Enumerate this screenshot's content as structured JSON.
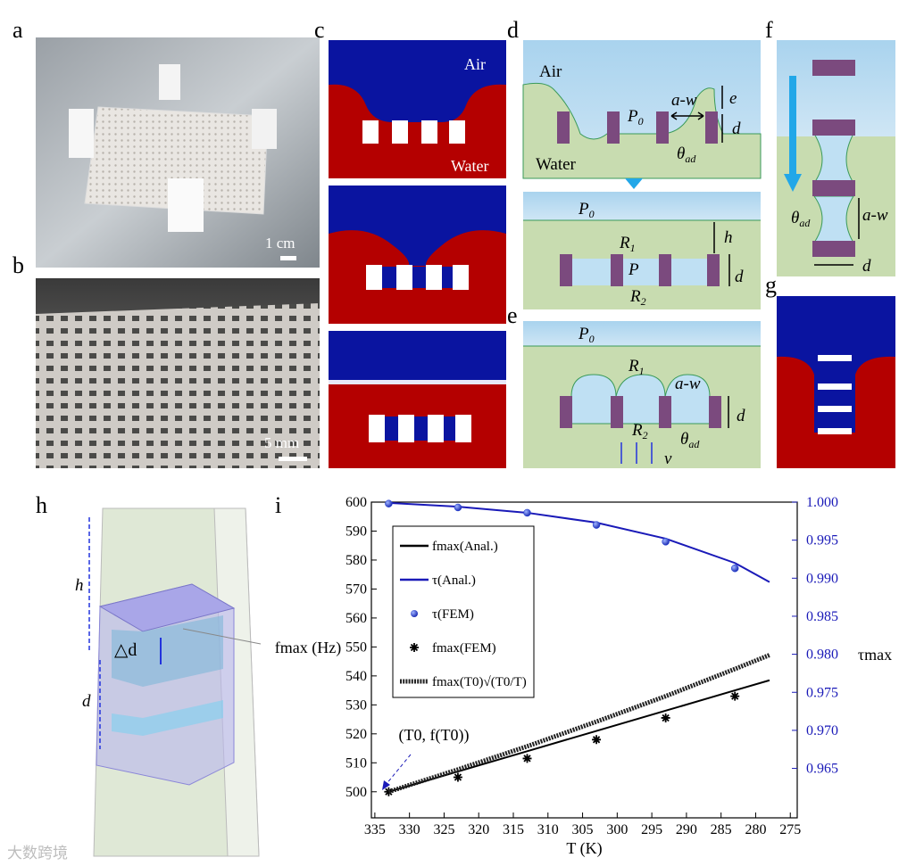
{
  "panels": {
    "a": {
      "label": "a",
      "scale_bar": "1 cm"
    },
    "b": {
      "label": "b",
      "scale_bar": "5 mm"
    },
    "c": {
      "label": "c",
      "top_medium": "Air",
      "bottom_medium": "Water"
    },
    "d": {
      "label": "d",
      "air": "Air",
      "water": "Water",
      "p0": {
        "base": "P",
        "sub": "0"
      },
      "gap": "a-w",
      "e": "e",
      "d": "d",
      "theta": {
        "base": "θ",
        "sub": "ad"
      },
      "p0_lower": {
        "base": "P",
        "sub": "0"
      },
      "h": "h",
      "r1": {
        "base": "R",
        "sub": "1"
      },
      "p": "P",
      "d_lower": "d",
      "r2": {
        "base": "R",
        "sub": "2"
      }
    },
    "e": {
      "label": "e",
      "p0": {
        "base": "P",
        "sub": "0"
      },
      "r1": {
        "base": "R",
        "sub": "1"
      },
      "gap": "a-w",
      "d": "d",
      "r2": {
        "base": "R",
        "sub": "2"
      },
      "theta": {
        "base": "θ",
        "sub": "ad"
      },
      "v": "v"
    },
    "f": {
      "label": "f",
      "theta": {
        "base": "θ",
        "sub": "ad"
      },
      "gap": "a-w",
      "d": "d"
    },
    "g": {
      "label": "g"
    },
    "h": {
      "label": "h",
      "h": "h",
      "delta_d": "△d",
      "d": "d"
    },
    "i": {
      "label": "i"
    }
  },
  "watermark": "大数跨境",
  "chart_data": {
    "type": "line",
    "xlabel": "T (K)",
    "ylabel": "fmax (Hz)",
    "y2label": "τmax",
    "annotation": "(T0, f(T0))",
    "xlim": [
      335.5,
      274
    ],
    "xticks": [
      335,
      330,
      325,
      320,
      315,
      310,
      305,
      300,
      295,
      290,
      285,
      280,
      275
    ],
    "ylim": [
      491,
      600
    ],
    "yticks": [
      500,
      510,
      520,
      530,
      540,
      550,
      560,
      570,
      580,
      590,
      600
    ],
    "y2lim": [
      0.9585,
      1.0
    ],
    "y2ticks": [
      {
        "value": 1.0,
        "label": "1.000"
      },
      0.995,
      {
        "value": 0.99,
        "label": "0.990"
      },
      0.985,
      {
        "value": 0.98,
        "label": "0.980"
      },
      0.975,
      {
        "value": 0.97,
        "label": "0.970"
      },
      0.965
    ],
    "grid": false,
    "series": [
      {
        "name": "fmax(Anal.)",
        "color": "#000000",
        "style": "line",
        "x": [
          333,
          323,
          313,
          303,
          293,
          283,
          278
        ],
        "values": [
          500,
          507,
          514,
          521,
          528,
          535,
          538.5
        ]
      },
      {
        "name": "τ(Anal.)",
        "color": "#1a1ab8",
        "style": "line",
        "axis": "y2",
        "x": [
          333,
          323,
          313,
          303,
          293,
          283,
          278
        ],
        "values": [
          0.9999,
          0.9994,
          0.9986,
          0.9973,
          0.9952,
          0.992,
          0.9895
        ]
      },
      {
        "name": "τ(FEM)",
        "color": "#1f3fd8",
        "style": "dots",
        "axis": "y2",
        "x": [
          333,
          323,
          313,
          303,
          293,
          283
        ],
        "values": [
          0.9998,
          0.9993,
          0.9986,
          0.997,
          0.9948,
          0.9913
        ]
      },
      {
        "name": "fmax(FEM)",
        "color": "#000000",
        "style": "stars",
        "x": [
          333,
          323,
          313,
          303,
          293,
          283
        ],
        "values": [
          500,
          505,
          511.5,
          518,
          525.5,
          533
        ]
      },
      {
        "name": "fmax(T0)√(T0/T)",
        "color": "#222222",
        "style": "dotted",
        "x": [
          333,
          323,
          313,
          303,
          293,
          283,
          278
        ],
        "values": [
          500,
          507.7,
          515.7,
          524.2,
          533,
          542.4,
          547.2
        ]
      }
    ]
  }
}
